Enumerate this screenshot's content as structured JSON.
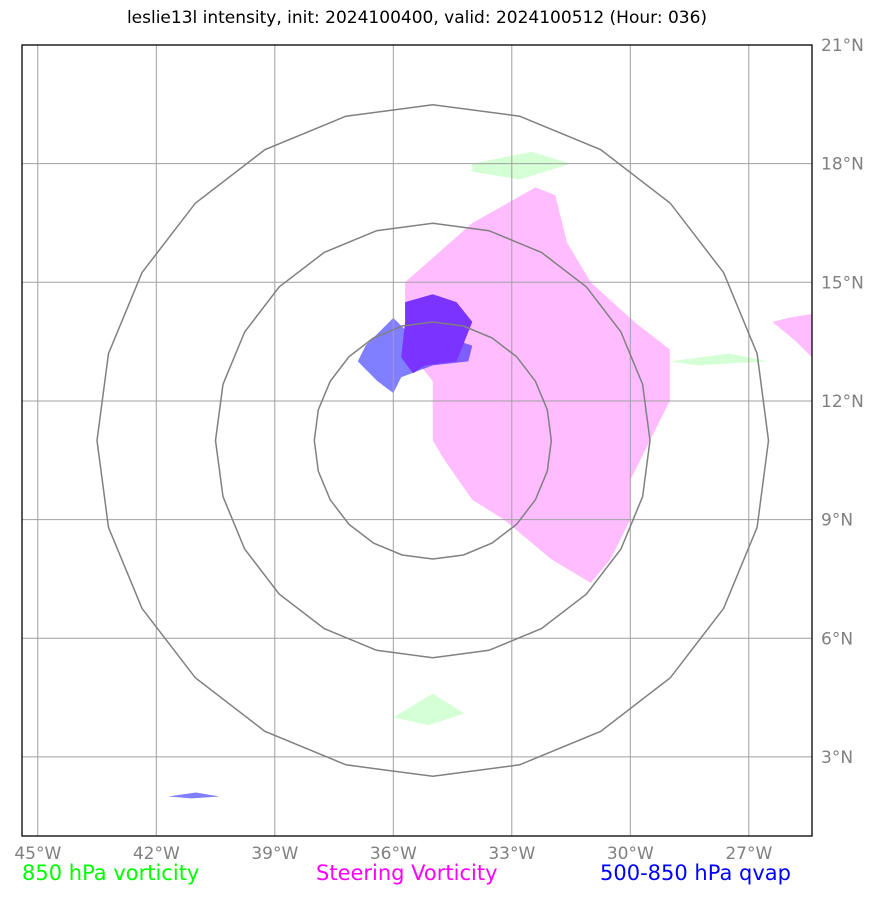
{
  "title": "leslie13l intensity, init: 2024100400, valid: 2024100512 (Hour: 036)",
  "axes": {
    "lon_ticks": [
      {
        "value": -45,
        "label": "45°W"
      },
      {
        "value": -42,
        "label": "42°W"
      },
      {
        "value": -39,
        "label": "39°W"
      },
      {
        "value": -36,
        "label": "36°W"
      },
      {
        "value": -33,
        "label": "33°W"
      },
      {
        "value": -30,
        "label": "30°W"
      },
      {
        "value": -27,
        "label": "27°W"
      }
    ],
    "lat_ticks": [
      {
        "value": 21,
        "label": "21°N"
      },
      {
        "value": 18,
        "label": "18°N"
      },
      {
        "value": 15,
        "label": "15°N"
      },
      {
        "value": 12,
        "label": "12°N"
      },
      {
        "value": 9,
        "label": "9°N"
      },
      {
        "value": 6,
        "label": "6°N"
      },
      {
        "value": 3,
        "label": "3°N"
      }
    ]
  },
  "legend": [
    {
      "label": "850 hPa vorticity",
      "color": "#00ff00"
    },
    {
      "label": "Steering Vorticity",
      "color": "#ff00ff"
    },
    {
      "label": "500-850 hPa qvap",
      "color": "#0000ff"
    }
  ],
  "map_data": {
    "lon_range": [
      -45.4,
      -25.4
    ],
    "lat_range": [
      1.0,
      21.0
    ],
    "storm_center": {
      "lon": -35.0,
      "lat": 11.0
    },
    "range_rings_deg": [
      3,
      5.5,
      8.5
    ],
    "layers": [
      {
        "name": "steering-vorticity",
        "color": "#ff99ff",
        "opacity": 0.65,
        "polygons": [
          [
            [
              -34.0,
              16.5
            ],
            [
              -32.4,
              17.4
            ],
            [
              -31.9,
              17.2
            ],
            [
              -31.6,
              16.0
            ],
            [
              -31.0,
              15.0
            ],
            [
              -29.9,
              14.0
            ],
            [
              -29.0,
              13.3
            ],
            [
              -29.0,
              12.0
            ],
            [
              -29.5,
              11.0
            ],
            [
              -30.0,
              10.0
            ],
            [
              -30.0,
              9.0
            ],
            [
              -30.5,
              8.0
            ],
            [
              -31.0,
              7.4
            ],
            [
              -32.0,
              8.0
            ],
            [
              -33.2,
              9.0
            ],
            [
              -34.0,
              9.5
            ],
            [
              -34.7,
              10.5
            ],
            [
              -35.0,
              11.0
            ],
            [
              -35.0,
              12.5
            ],
            [
              -35.4,
              13.0
            ],
            [
              -35.7,
              14.0
            ],
            [
              -35.7,
              15.0
            ]
          ],
          [
            [
              -26.0,
              14.1
            ],
            [
              -25.4,
              14.2
            ],
            [
              -25.4,
              13.1
            ],
            [
              -25.8,
              13.5
            ],
            [
              -26.4,
              14.0
            ]
          ]
        ]
      },
      {
        "name": "850-hpa-vorticity",
        "color": "#b3ffb3",
        "opacity": 0.55,
        "polygons": [
          [
            [
              -34.0,
              18.0
            ],
            [
              -32.5,
              18.3
            ],
            [
              -31.5,
              18.0
            ],
            [
              -32.8,
              17.6
            ],
            [
              -34.0,
              17.8
            ]
          ],
          [
            [
              -29.0,
              13.0
            ],
            [
              -27.5,
              13.2
            ],
            [
              -26.5,
              13.0
            ],
            [
              -28.3,
              12.9
            ]
          ],
          [
            [
              -36.0,
              4.0
            ],
            [
              -35.0,
              4.6
            ],
            [
              -34.2,
              4.1
            ],
            [
              -35.1,
              3.8
            ]
          ]
        ]
      },
      {
        "name": "qvap-500-850",
        "color": "#0000ff",
        "opacity": 0.5,
        "polygons": [
          [
            [
              -36.0,
              14.1
            ],
            [
              -35.6,
              13.7
            ],
            [
              -34.9,
              13.7
            ],
            [
              -34.0,
              13.4
            ],
            [
              -34.1,
              13.0
            ],
            [
              -35.0,
              12.9
            ],
            [
              -35.8,
              12.6
            ],
            [
              -36.0,
              12.2
            ],
            [
              -36.4,
              12.5
            ],
            [
              -36.9,
              13.0
            ],
            [
              -36.7,
              13.4
            ]
          ],
          [
            [
              -41.7,
              2.0
            ],
            [
              -41.0,
              2.1
            ],
            [
              -40.4,
              2.0
            ],
            [
              -41.1,
              1.95
            ]
          ]
        ]
      },
      {
        "name": "overlap-qvap-steering",
        "color": "#7b33ff",
        "opacity": 1.0,
        "polygons": [
          [
            [
              -35.7,
              14.5
            ],
            [
              -35.0,
              14.7
            ],
            [
              -34.4,
              14.5
            ],
            [
              -34.0,
              14.0
            ],
            [
              -34.4,
              13.0
            ],
            [
              -35.2,
              12.9
            ],
            [
              -35.5,
              12.7
            ],
            [
              -35.8,
              13.1
            ],
            [
              -35.7,
              14.0
            ]
          ]
        ]
      }
    ]
  }
}
